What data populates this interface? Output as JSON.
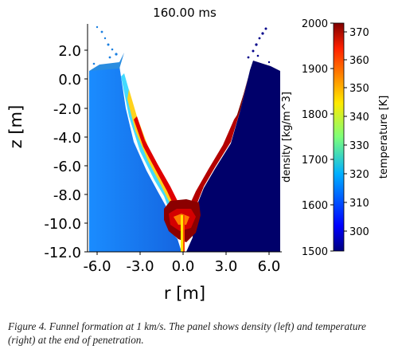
{
  "figure": {
    "title": "160.00 ms",
    "xlabel": "r [m]",
    "ylabel": "z [m]",
    "caption": "Figure 4. Funnel formation at 1 km/s. The panel shows density (left) and temperature (right) at the end of penetration."
  },
  "chart_data": {
    "type": "heatmap",
    "title": "160.00 ms",
    "xlabel": "r [m]",
    "ylabel": "z [m]",
    "x_ticks": [
      "-6.0",
      "-3.0",
      "0.0",
      "3.0",
      "6.0"
    ],
    "y_ticks": [
      "2.0",
      "0.0",
      "-2.0",
      "-4.0",
      "-6.0",
      "-8.0",
      "-10.0",
      "-12.0"
    ],
    "x_range": [
      -7.0,
      7.0
    ],
    "y_range": [
      -12.0,
      3.5
    ],
    "left_panel": "density",
    "right_panel": "temperature",
    "colorbar_density": {
      "label": "density [kg/m^3]",
      "ticks": [
        "2000",
        "1900",
        "1800",
        "1700",
        "1600",
        "1500"
      ],
      "range": [
        1500,
        2000
      ]
    },
    "colorbar_temperature": {
      "label": "temperature [K]",
      "ticks": [
        "370",
        "360",
        "350",
        "340",
        "330",
        "320",
        "310",
        "300"
      ],
      "range": [
        293,
        373
      ]
    },
    "colormap": "jet"
  }
}
